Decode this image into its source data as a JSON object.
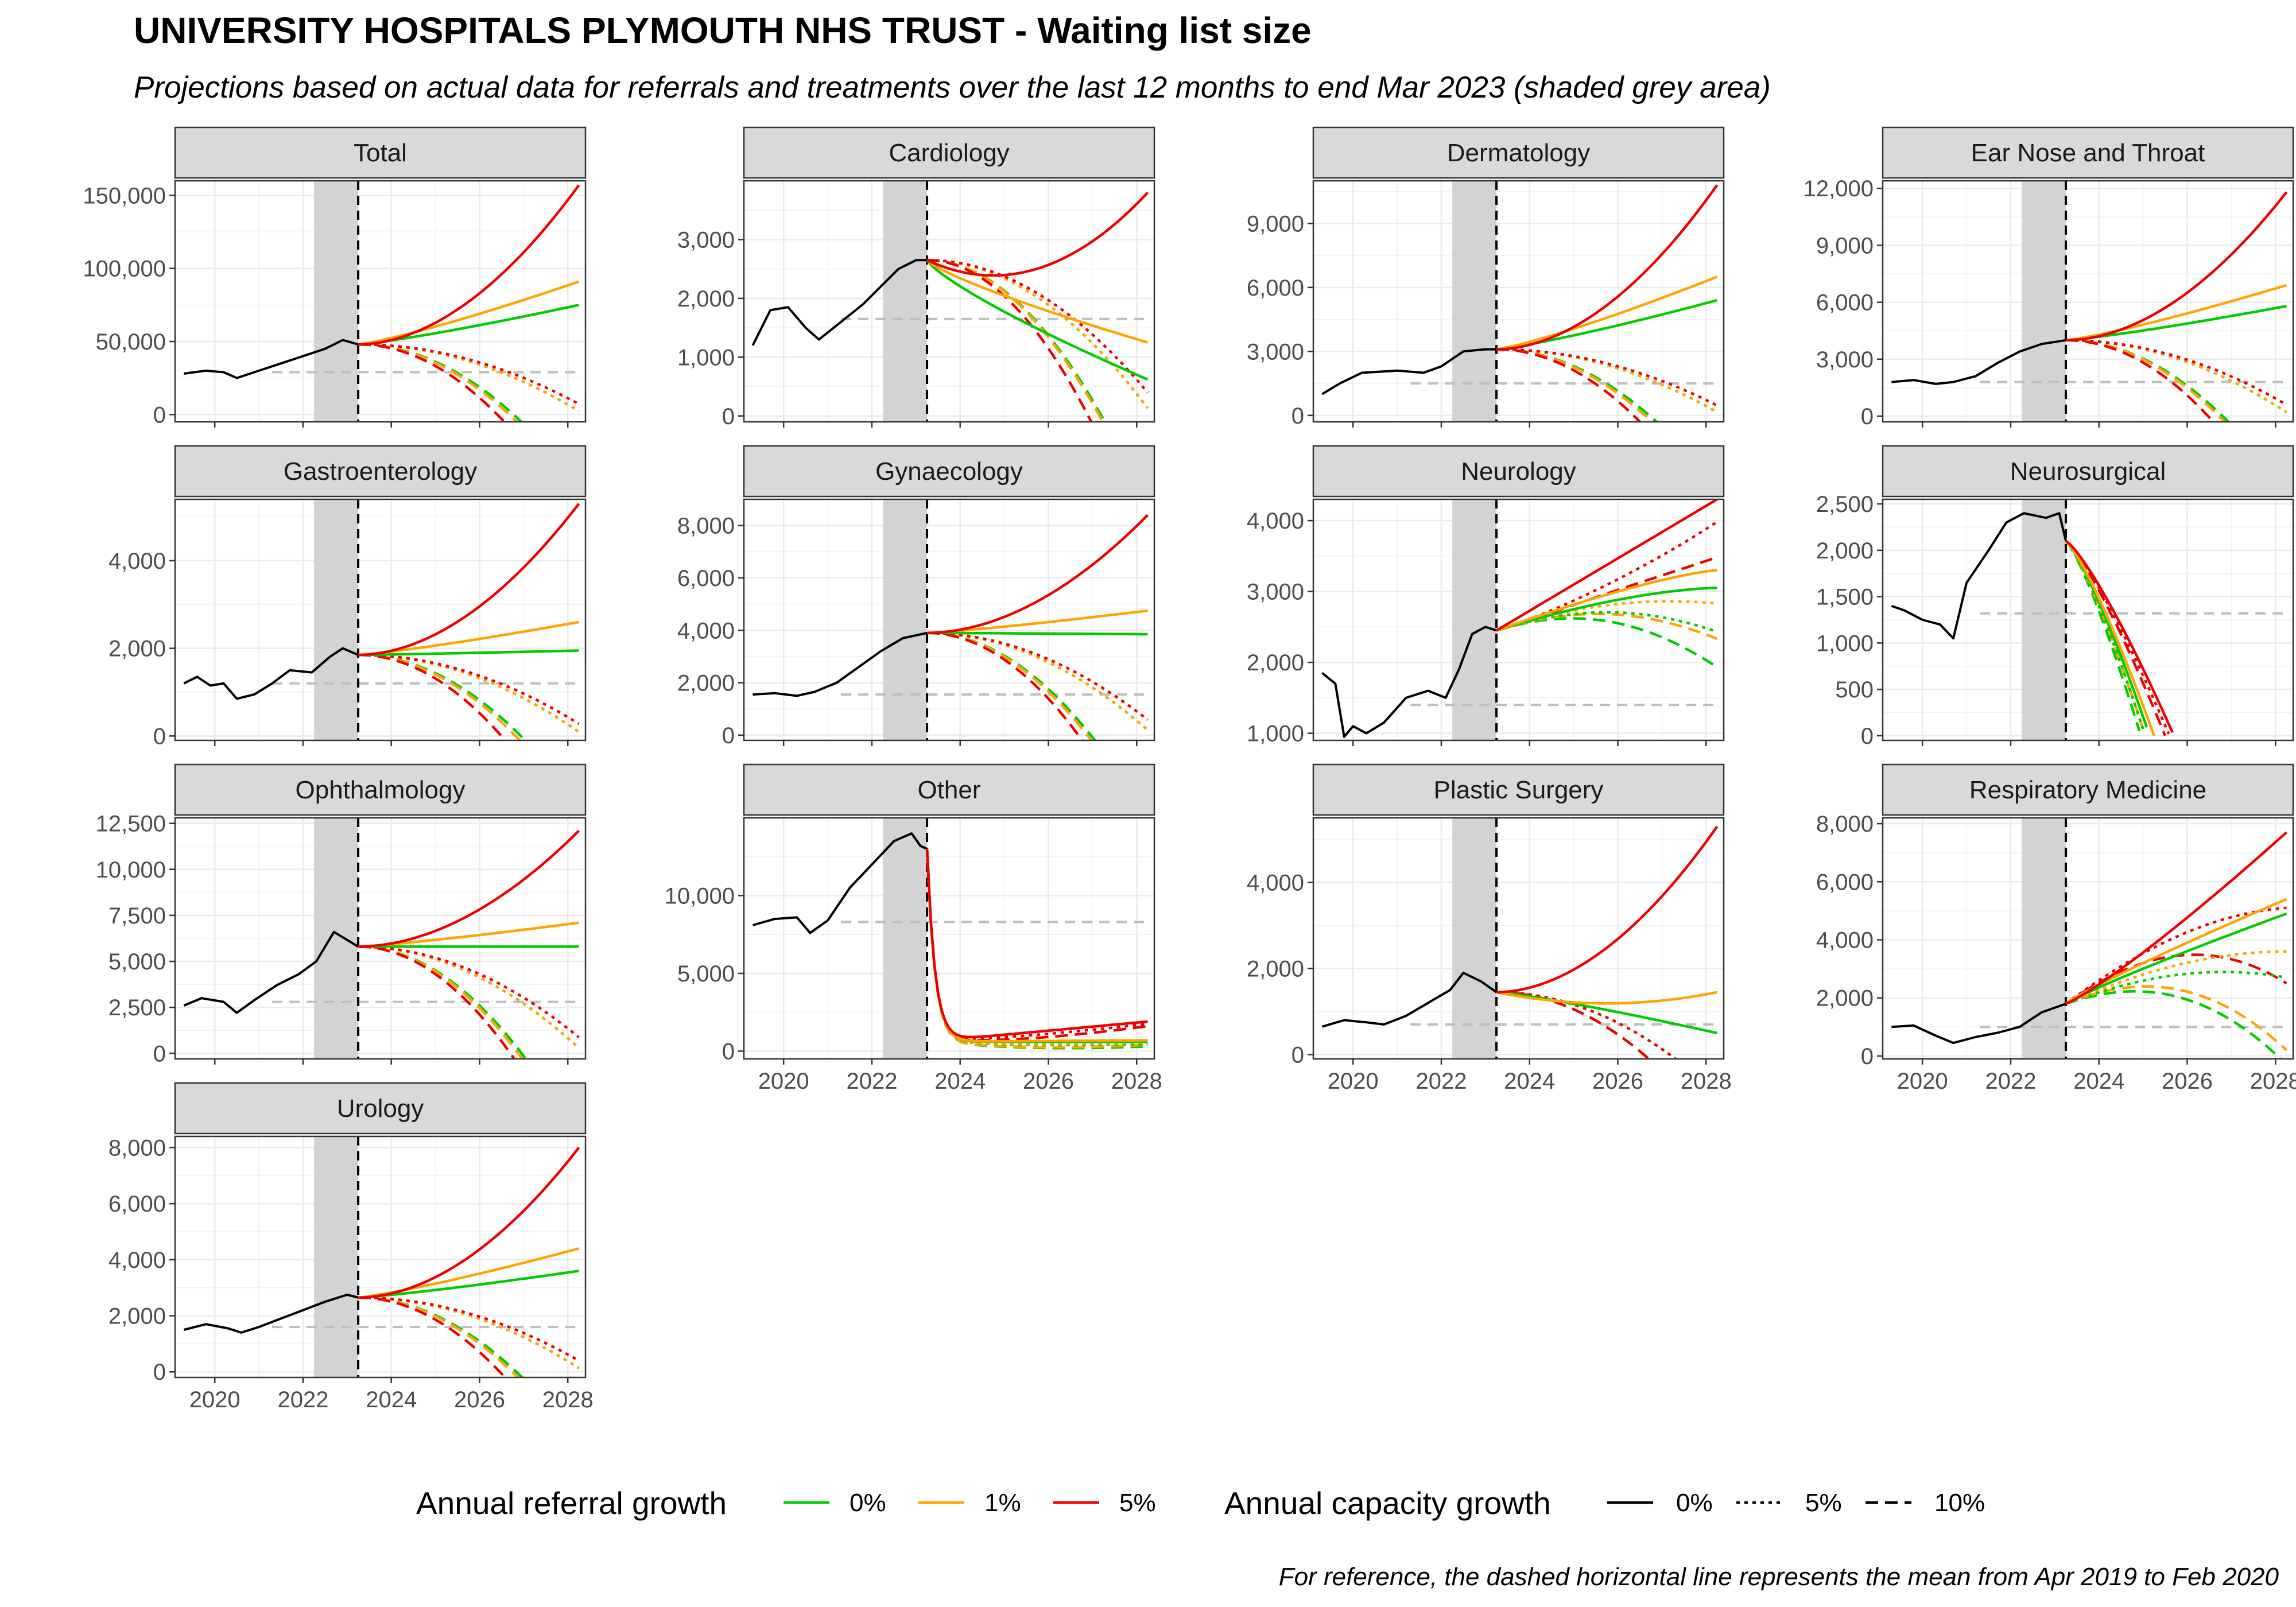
{
  "title": "UNIVERSITY HOSPITALS PLYMOUTH NHS TRUST - Waiting list size",
  "subtitle": "Projections based on actual data for referrals and treatments over the last 12 months to end Mar 2023 (shaded grey area)",
  "caption": "For reference, the dashed horizontal line represents the mean from Apr 2019 to Feb 2020",
  "legend": {
    "referral_title": "Annual referral growth",
    "referral_items": [
      {
        "label": "0%",
        "color": "#00CC00",
        "rate": 0
      },
      {
        "label": "1%",
        "color": "#FFA500",
        "rate": 0.01
      },
      {
        "label": "5%",
        "color": "#EE0000",
        "rate": 0.05
      }
    ],
    "capacity_title": "Annual capacity growth",
    "capacity_items": [
      {
        "label": "0%",
        "dash": "solid",
        "rate": 0
      },
      {
        "label": "5%",
        "dash": "dotted",
        "rate": 0.05
      },
      {
        "label": "10%",
        "dash": "dashed",
        "rate": 0.1
      }
    ]
  },
  "chart_data": {
    "type": "line",
    "layout": "facet_wrap",
    "x_range": [
      2019.1,
      2028.4
    ],
    "x_ticks": [
      2020,
      2022,
      2024,
      2026,
      2028
    ],
    "shaded_period": [
      2022.25,
      2023.25
    ],
    "projection_start": 2023.25,
    "projection_end": 2028.25,
    "panels": [
      {
        "name": "Total",
        "ylim": [
          -5000,
          160000
        ],
        "yticks": [
          0,
          50000,
          100000,
          150000
        ],
        "ref_mean": 29000,
        "start": 48000,
        "actual": [
          [
            2019.3,
            28000
          ],
          [
            2019.8,
            30000
          ],
          [
            2020.2,
            29000
          ],
          [
            2020.5,
            25000
          ],
          [
            2021,
            30000
          ],
          [
            2021.5,
            35000
          ],
          [
            2022,
            40000
          ],
          [
            2022.5,
            45000
          ],
          [
            2022.9,
            51000
          ],
          [
            2023.25,
            48000
          ]
        ],
        "end_solid": [
          75000,
          91000,
          157000
        ],
        "delta": 8000
      },
      {
        "name": "Cardiology",
        "ylim": [
          -100,
          4000
        ],
        "yticks": [
          0,
          1000,
          2000,
          3000
        ],
        "ref_mean": 1650,
        "start": 2650,
        "actual": [
          [
            2019.3,
            1200
          ],
          [
            2019.7,
            1800
          ],
          [
            2020.1,
            1850
          ],
          [
            2020.5,
            1500
          ],
          [
            2020.8,
            1300
          ],
          [
            2021.3,
            1600
          ],
          [
            2021.8,
            1900
          ],
          [
            2022.2,
            2200
          ],
          [
            2022.6,
            2500
          ],
          [
            2023,
            2650
          ],
          [
            2023.25,
            2650
          ]
        ],
        "end_solid": [
          620,
          1250,
          3800
        ],
        "delta": 420
      },
      {
        "name": "Dermatology",
        "ylim": [
          -300,
          11000
        ],
        "yticks": [
          0,
          3000,
          6000,
          9000
        ],
        "ref_mean": 1500,
        "start": 3100,
        "actual": [
          [
            2019.3,
            1000
          ],
          [
            2019.7,
            1500
          ],
          [
            2020.2,
            2000
          ],
          [
            2021,
            2100
          ],
          [
            2021.6,
            2000
          ],
          [
            2022,
            2300
          ],
          [
            2022.5,
            3000
          ],
          [
            2023,
            3100
          ],
          [
            2023.25,
            3100
          ]
        ],
        "end_solid": [
          5400,
          6500,
          10800
        ],
        "delta": 450
      },
      {
        "name": "Ear Nose and Throat",
        "ylim": [
          -300,
          12400
        ],
        "yticks": [
          0,
          3000,
          6000,
          9000,
          12000
        ],
        "ref_mean": 1800,
        "start": 4000,
        "actual": [
          [
            2019.3,
            1800
          ],
          [
            2019.8,
            1900
          ],
          [
            2020.3,
            1700
          ],
          [
            2020.7,
            1800
          ],
          [
            2021.2,
            2100
          ],
          [
            2021.7,
            2800
          ],
          [
            2022.2,
            3400
          ],
          [
            2022.7,
            3800
          ],
          [
            2023.25,
            4000
          ]
        ],
        "end_solid": [
          5800,
          6900,
          11800
        ],
        "delta": 500
      },
      {
        "name": "Gastroenterology",
        "ylim": [
          -100,
          5400
        ],
        "yticks": [
          0,
          2000,
          4000
        ],
        "ref_mean": 1200,
        "start": 1850,
        "actual": [
          [
            2019.3,
            1200
          ],
          [
            2019.6,
            1350
          ],
          [
            2019.9,
            1150
          ],
          [
            2020.2,
            1200
          ],
          [
            2020.5,
            850
          ],
          [
            2020.9,
            950
          ],
          [
            2021.3,
            1200
          ],
          [
            2021.7,
            1500
          ],
          [
            2022.2,
            1450
          ],
          [
            2022.6,
            1800
          ],
          [
            2022.9,
            2000
          ],
          [
            2023.25,
            1850
          ]
        ],
        "end_solid": [
          1950,
          2600,
          5300
        ],
        "delta": 200
      },
      {
        "name": "Gynaecology",
        "ylim": [
          -200,
          9000
        ],
        "yticks": [
          0,
          2000,
          4000,
          6000,
          8000
        ],
        "ref_mean": 1550,
        "start": 3900,
        "actual": [
          [
            2019.3,
            1550
          ],
          [
            2019.8,
            1600
          ],
          [
            2020.3,
            1500
          ],
          [
            2020.7,
            1650
          ],
          [
            2021.2,
            2000
          ],
          [
            2021.7,
            2600
          ],
          [
            2022.2,
            3200
          ],
          [
            2022.7,
            3700
          ],
          [
            2023.25,
            3900
          ]
        ],
        "end_solid": [
          3850,
          4750,
          8400
        ],
        "delta": 350
      },
      {
        "name": "Neurology",
        "ylim": [
          900,
          4300
        ],
        "yticks": [
          1000,
          2000,
          3000,
          4000
        ],
        "ref_mean": 1400,
        "start": 2450,
        "actual": [
          [
            2019.3,
            1850
          ],
          [
            2019.6,
            1700
          ],
          [
            2019.8,
            950
          ],
          [
            2020,
            1100
          ],
          [
            2020.3,
            1000
          ],
          [
            2020.7,
            1150
          ],
          [
            2021.2,
            1500
          ],
          [
            2021.7,
            1600
          ],
          [
            2022.1,
            1500
          ],
          [
            2022.4,
            1900
          ],
          [
            2022.7,
            2400
          ],
          [
            2023,
            2500
          ],
          [
            2023.25,
            2450
          ]
        ],
        "end_solid": [
          3050,
          3300,
          4300
        ],
        "delta": 250
      },
      {
        "name": "Neurosurgical",
        "ylim": [
          -50,
          2550
        ],
        "yticks": [
          0,
          500,
          1000,
          1500,
          2000,
          2500
        ],
        "ref_mean": 1320,
        "start": 2100,
        "actual": [
          [
            2019.3,
            1400
          ],
          [
            2019.6,
            1350
          ],
          [
            2020,
            1250
          ],
          [
            2020.4,
            1200
          ],
          [
            2020.7,
            1050
          ],
          [
            2021,
            1650
          ],
          [
            2021.5,
            2000
          ],
          [
            2021.9,
            2300
          ],
          [
            2022.3,
            2400
          ],
          [
            2022.8,
            2350
          ],
          [
            2023.1,
            2400
          ],
          [
            2023.25,
            2100
          ]
        ],
        "end_solid": [
          0,
          0,
          0
        ],
        "delta": 0
      },
      {
        "name": "Ophthalmology",
        "ylim": [
          -300,
          12800
        ],
        "yticks": [
          0,
          2500,
          5000,
          7500,
          10000,
          12500
        ],
        "ref_mean": 2800,
        "start": 5800,
        "actual": [
          [
            2019.3,
            2600
          ],
          [
            2019.7,
            3000
          ],
          [
            2020.2,
            2800
          ],
          [
            2020.5,
            2200
          ],
          [
            2020.9,
            2900
          ],
          [
            2021.4,
            3700
          ],
          [
            2021.9,
            4300
          ],
          [
            2022.3,
            5000
          ],
          [
            2022.7,
            6600
          ],
          [
            2023.25,
            5800
          ]
        ],
        "end_solid": [
          5800,
          7100,
          12100
        ],
        "delta": 600
      },
      {
        "name": "Other",
        "ylim": [
          -500,
          15000
        ],
        "yticks": [
          0,
          5000,
          10000
        ],
        "ref_mean": 8300,
        "start": 13000,
        "actual": [
          [
            2019.3,
            8100
          ],
          [
            2019.8,
            8500
          ],
          [
            2020.3,
            8600
          ],
          [
            2020.6,
            7600
          ],
          [
            2021,
            8400
          ],
          [
            2021.5,
            10500
          ],
          [
            2022,
            12000
          ],
          [
            2022.5,
            13500
          ],
          [
            2022.9,
            14000
          ],
          [
            2023.1,
            13200
          ],
          [
            2023.25,
            13000
          ]
        ],
        "end_solid": [
          600,
          700,
          1900
        ],
        "delta": 300
      },
      {
        "name": "Plastic Surgery",
        "ylim": [
          -100,
          5500
        ],
        "yticks": [
          0,
          2000,
          4000
        ],
        "ref_mean": 700,
        "start": 1450,
        "actual": [
          [
            2019.3,
            650
          ],
          [
            2019.8,
            800
          ],
          [
            2020.3,
            750
          ],
          [
            2020.7,
            700
          ],
          [
            2021.2,
            900
          ],
          [
            2021.7,
            1200
          ],
          [
            2022.2,
            1500
          ],
          [
            2022.5,
            1900
          ],
          [
            2022.9,
            1700
          ],
          [
            2023.25,
            1450
          ]
        ],
        "end_solid": [
          500,
          1450,
          5300
        ],
        "delta": 0
      },
      {
        "name": "Respiratory Medicine",
        "ylim": [
          -100,
          8200
        ],
        "yticks": [
          0,
          2000,
          4000,
          6000,
          8000
        ],
        "ref_mean": 1000,
        "start": 1800,
        "actual": [
          [
            2019.3,
            1000
          ],
          [
            2019.8,
            1050
          ],
          [
            2020.3,
            700
          ],
          [
            2020.7,
            450
          ],
          [
            2021.2,
            650
          ],
          [
            2021.7,
            800
          ],
          [
            2022.2,
            1000
          ],
          [
            2022.7,
            1500
          ],
          [
            2023.25,
            1800
          ]
        ],
        "end_solid": [
          4900,
          5400,
          7700
        ],
        "delta": 0
      },
      {
        "name": "Urology",
        "ylim": [
          -200,
          8400
        ],
        "yticks": [
          0,
          2000,
          4000,
          6000,
          8000
        ],
        "ref_mean": 1600,
        "start": 2650,
        "actual": [
          [
            2019.3,
            1500
          ],
          [
            2019.8,
            1700
          ],
          [
            2020.3,
            1550
          ],
          [
            2020.6,
            1400
          ],
          [
            2021,
            1600
          ],
          [
            2021.5,
            1900
          ],
          [
            2022,
            2200
          ],
          [
            2022.5,
            2500
          ],
          [
            2023,
            2750
          ],
          [
            2023.25,
            2650
          ]
        ],
        "end_solid": [
          3600,
          4400,
          8000
        ],
        "delta": 300
      }
    ]
  }
}
